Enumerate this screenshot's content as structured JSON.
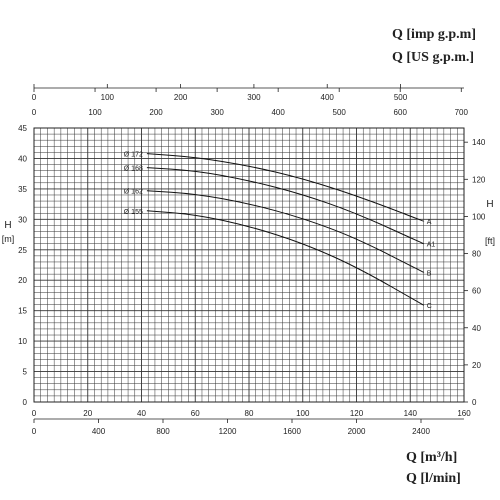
{
  "chart_data": {
    "type": "line",
    "units_top": [
      "Q [imp g.p.m]",
      "Q [US g.p.m.]"
    ],
    "units_bottom": [
      "Q [m³/h]",
      "Q [l/min]"
    ],
    "ylabel_left": [
      "H",
      "[m]"
    ],
    "ylabel_right": [
      "H",
      "[ft]"
    ],
    "axes": {
      "x_m3h": {
        "min": 0,
        "max": 160,
        "ticks": [
          0,
          20,
          40,
          60,
          80,
          100,
          120,
          140,
          160
        ]
      },
      "x_lmin": {
        "ticks": [
          0,
          400,
          800,
          1200,
          1600,
          2000,
          2400
        ]
      },
      "x_usgpm": {
        "ticks": [
          0,
          100,
          200,
          300,
          400,
          500,
          600,
          700
        ]
      },
      "x_impgpm": {
        "ticks": [
          0,
          100,
          200,
          300,
          400,
          500
        ]
      },
      "y_m": {
        "min": 0,
        "max": 45,
        "ticks": [
          0,
          5,
          10,
          15,
          20,
          25,
          30,
          35,
          40,
          45
        ]
      },
      "y_ft": {
        "ticks": [
          0,
          20,
          40,
          60,
          80,
          100,
          120,
          140
        ]
      },
      "grid": true
    },
    "series": [
      {
        "name": "A",
        "diameter_label": "Ø 172",
        "x": [
          42,
          60,
          80,
          100,
          120,
          145
        ],
        "y": [
          40.8,
          40.2,
          38.8,
          36.7,
          33.9,
          29.7
        ]
      },
      {
        "name": "A1",
        "diameter_label": "Ø 168",
        "x": [
          42,
          60,
          80,
          100,
          120,
          145
        ],
        "y": [
          38.5,
          38.0,
          36.4,
          34.1,
          31.0,
          26.0
        ]
      },
      {
        "name": "B",
        "diameter_label": "Ø 162",
        "x": [
          42,
          60,
          80,
          100,
          120,
          145
        ],
        "y": [
          34.7,
          34.2,
          32.6,
          30.2,
          26.9,
          21.3
        ]
      },
      {
        "name": "C",
        "diameter_label": "Ø 155",
        "x": [
          42,
          60,
          80,
          100,
          120,
          145
        ],
        "y": [
          31.4,
          30.8,
          28.9,
          26.1,
          22.2,
          15.9
        ]
      }
    ]
  }
}
